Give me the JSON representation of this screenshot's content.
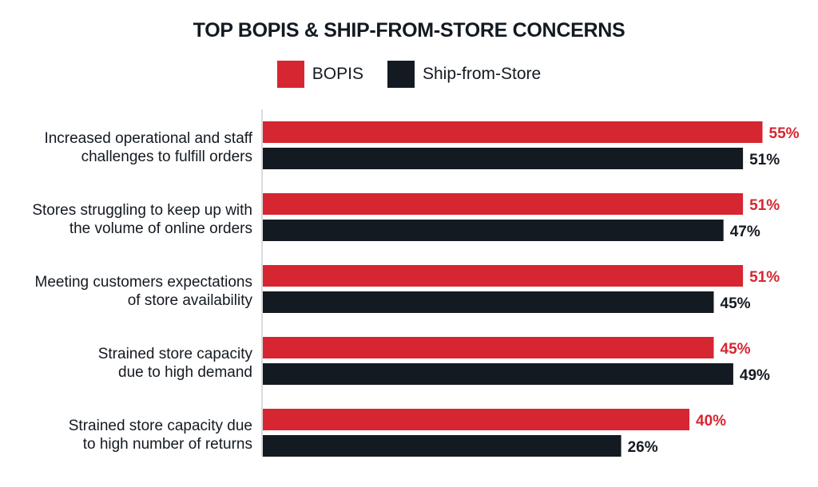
{
  "chart_data": {
    "type": "bar",
    "orientation": "horizontal",
    "title": "TOP BOPIS & SHIP-FROM-STORE CONCERNS",
    "categories": [
      [
        "Increased operational and staff",
        "challenges to fulfill orders"
      ],
      [
        "Stores struggling to keep up with",
        "the volume of online orders"
      ],
      [
        "Meeting customers expectations",
        "of store availability"
      ],
      [
        "Strained store capacity",
        "due to high demand"
      ],
      [
        "Strained store capacity due",
        "to high number of returns"
      ]
    ],
    "series": [
      {
        "name": "BOPIS",
        "color": "#d62631",
        "values": [
          55,
          51,
          51,
          45,
          40
        ]
      },
      {
        "name": "Ship-from-Store",
        "color": "#141a21",
        "values": [
          51,
          47,
          45,
          49,
          26
        ]
      }
    ],
    "unit": "%",
    "grid": false,
    "legend_position": "top"
  }
}
